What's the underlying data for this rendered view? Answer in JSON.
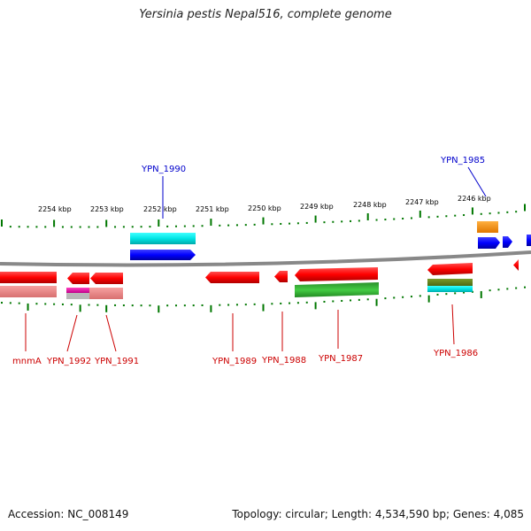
{
  "title": "Yersinia pestis Nepal516, complete genome",
  "footer": {
    "accession": "Accession: NC_008149",
    "summary": "Topology: circular; Length: 4,534,590 bp; Genes: 4,085"
  },
  "colors": {
    "forward_label": "#0000cc",
    "reverse_label": "#cc0000",
    "tick": "#007700",
    "backbone": "#888888"
  },
  "scale_labels": [
    "2254 kbp",
    "2253 kbp",
    "2252 kbp",
    "2251 kbp",
    "2250 kbp",
    "2249 kbp",
    "2248 kbp",
    "2247 kbp",
    "2246 kbp"
  ],
  "gene_labels": {
    "forward": [
      "YPN_1990",
      "YPN_1985"
    ],
    "reverse": [
      "mnmA",
      "YPN_1992",
      "YPN_1991",
      "YPN_1989",
      "YPN_1988",
      "YPN_1987",
      "YPN_1986"
    ]
  }
}
